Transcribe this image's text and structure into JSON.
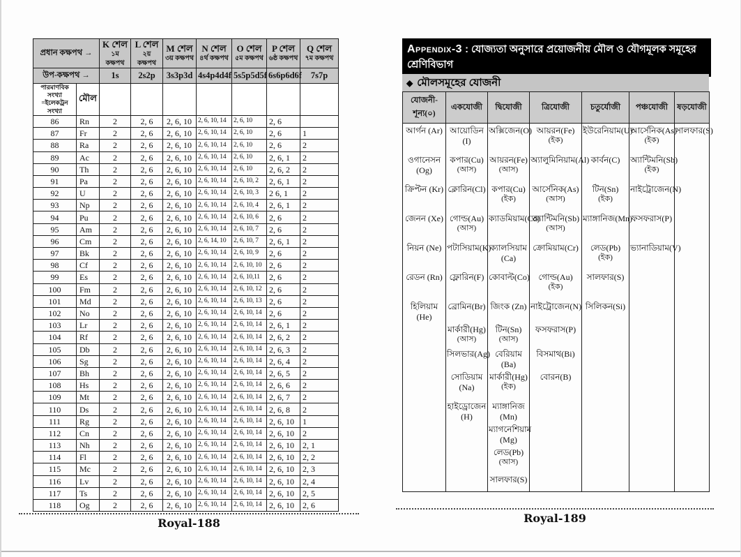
{
  "left_page": {
    "electron_table": {
      "corner_main_label": "প্রধান কক্ষপথ →",
      "corner_sub_label": "উপ-কক্ষপথ →",
      "atomic_number_label_line1": "পারমাণবিক সংখ্যা",
      "atomic_number_label_line2": "=ইলেকট্রন সংখ্যা",
      "element_label": "মৌল",
      "shells": [
        {
          "name": "K শেল",
          "orbit": "১ম কক্ষপথ"
        },
        {
          "name": "L শেল",
          "orbit": "২য় কক্ষপথ"
        },
        {
          "name": "M শেল",
          "orbit": "৩য় কক্ষপথ"
        },
        {
          "name": "N শেল",
          "orbit": "৪র্থ কক্ষপথ"
        },
        {
          "name": "O শেল",
          "orbit": "৫ম কক্ষপথ"
        },
        {
          "name": "P শেল",
          "orbit": "৬ষ্ঠ কক্ষপথ"
        },
        {
          "name": "Q শেল",
          "orbit": "৭ম কক্ষপথ"
        }
      ],
      "subshells": [
        "1s",
        "2s2p",
        "3s3p3d",
        "4s4p4d4f",
        "5s5p5d5f",
        "6s6p6d6f",
        "7s7p"
      ],
      "rows": [
        [
          "86",
          "Rn",
          "2",
          "2, 6",
          "2, 6, 10",
          "2, 6, 10, 14",
          "2, 6, 10",
          "2, 6",
          ""
        ],
        [
          "87",
          "Fr",
          "2",
          "2, 6",
          "2, 6, 10",
          "2, 6, 10, 14",
          "2, 6, 10",
          "2, 6",
          "1"
        ],
        [
          "88",
          "Ra",
          "2",
          "2, 6",
          "2, 6, 10",
          "2, 6, 10, 14",
          "2, 6, 10",
          "2, 6",
          "2"
        ],
        [
          "89",
          "Ac",
          "2",
          "2, 6",
          "2, 6, 10",
          "2, 6, 10, 14",
          "2, 6, 10",
          "2, 6, 1",
          "2"
        ],
        [
          "90",
          "Th",
          "2",
          "2, 6",
          "2, 6, 10",
          "2, 6, 10, 14",
          "2, 6, 10",
          "2, 6, 2",
          "2"
        ],
        [
          "91",
          "Pa",
          "2",
          "2, 6",
          "2, 6, 10",
          "2, 6, 10, 14",
          "2, 6, 10, 2",
          "2, 6, 1",
          "2"
        ],
        [
          "92",
          "U",
          "2",
          "2, 6",
          "2, 6, 10",
          "2, 6, 10, 14",
          "2, 6, 10, 3",
          "2 6, 1",
          "2"
        ],
        [
          "93",
          "Np",
          "2",
          "2, 6",
          "2, 6, 10",
          "2, 6, 10, 14",
          "2, 6, 10, 4",
          "2, 6, 1",
          "2"
        ],
        [
          "94",
          "Pu",
          "2",
          "2, 6",
          "2, 6, 10",
          "2, 6, 10, 14",
          "2, 6, 10, 6",
          "2, 6",
          "2"
        ],
        [
          "95",
          "Am",
          "2",
          "2, 6",
          "2, 6, 10",
          "2, 6, 10, 14",
          "2, 6, 10, 7",
          "2, 6",
          "2"
        ],
        [
          "96",
          "Cm",
          "2",
          "2, 6",
          "2, 6, 10",
          "2, 6, 14, 10",
          "2, 6, 10, 7",
          "2, 6, 1",
          "2"
        ],
        [
          "97",
          "Bk",
          "2",
          "2, 6",
          "2, 6, 10",
          "2, 6, 10, 14",
          "2, 6, 10, 9",
          "2, 6",
          "2"
        ],
        [
          "98",
          "Cf",
          "2",
          "2, 6",
          "2, 6, 10",
          "2, 6, 10, 14",
          "2, 6, 10, 10",
          "2, 6",
          "2"
        ],
        [
          "99",
          "Es",
          "2",
          "2, 6",
          "2, 6, 10",
          "2, 6, 10, 14",
          "2, 6, 10,11",
          "2, 6",
          "2"
        ],
        [
          "100",
          "Fm",
          "2",
          "2, 6",
          "2, 6, 10",
          "2, 6, 10, 14",
          "2, 6, 10, 12",
          "2, 6",
          "2"
        ],
        [
          "101",
          "Md",
          "2",
          "2, 6",
          "2, 6, 10",
          "2, 6, 10, 14",
          "2, 6, 10, 13",
          "2, 6",
          "2"
        ],
        [
          "102",
          "No",
          "2",
          "2, 6",
          "2, 6, 10",
          "2, 6, 10, 14",
          "2, 6, 10, 14",
          "2, 6",
          "2"
        ],
        [
          "103",
          "Lr",
          "2",
          "2, 6",
          "2, 6, 10",
          "2, 6, 10, 14",
          "2, 6, 10, 14",
          "2, 6, 1",
          "2"
        ],
        [
          "104",
          "Rf",
          "2",
          "2, 6",
          "2, 6, 10",
          "2, 6, 10, 14",
          "2, 6, 10, 14",
          "2, 6, 2",
          "2"
        ],
        [
          "105",
          "Db",
          "2",
          "2, 6",
          "2, 6, 10",
          "2, 6, 10, 14",
          "2, 6, 10, 14",
          "2, 6, 3",
          "2"
        ],
        [
          "106",
          "Sg",
          "2",
          "2, 6",
          "2, 6, 10",
          "2, 6, 10, 14",
          "2, 6, 10, 14",
          "2, 6, 4",
          "2"
        ],
        [
          "107",
          "Bh",
          "2",
          "2, 6",
          "2, 6, 10",
          "2, 6, 10, 14",
          "2, 6, 10, 14",
          "2, 6, 5",
          "2"
        ],
        [
          "108",
          "Hs",
          "2",
          "2, 6",
          "2, 6, 10",
          "2, 6, 10, 14",
          "2, 6, 10, 14",
          "2, 6, 6",
          "2"
        ],
        [
          "109",
          "Mt",
          "2",
          "2, 6",
          "2, 6, 10",
          "2, 6, 10, 14",
          "2, 6, 10, 14",
          "2, 6, 7",
          "2"
        ],
        [
          "110",
          "Ds",
          "2",
          "2, 6",
          "2, 6, 10",
          "2, 6, 10, 14",
          "2, 6, 10, 14",
          "2, 6, 8",
          "2"
        ],
        [
          "111",
          "Rg",
          "2",
          "2, 6",
          "2, 6, 10",
          "2, 6, 10, 14",
          "2, 6, 10, 14",
          "2, 6, 10",
          "1"
        ],
        [
          "112",
          "Cn",
          "2",
          "2, 6",
          "2, 6, 10",
          "2, 6, 10, 14",
          "2, 6, 10, 14",
          "2, 6, 10",
          "2"
        ],
        [
          "113",
          "Nh",
          "2",
          "2, 6",
          "2, 6, 10",
          "2, 6, 10, 14",
          "2, 6, 10, 14",
          "2, 6, 10",
          "2, 1"
        ],
        [
          "114",
          "Fl",
          "2",
          "2, 6",
          "2, 6, 10",
          "2, 6, 10, 14",
          "2, 6, 10, 14",
          "2, 6, 10",
          "2, 2"
        ],
        [
          "115",
          "Mc",
          "2",
          "2, 6",
          "2, 6, 10",
          "2, 6, 10, 14",
          "2, 6, 10, 14",
          "2, 6, 10",
          "2, 3"
        ],
        [
          "116",
          "Lv",
          "2",
          "2, 6",
          "2, 6, 10",
          "2, 6, 10, 14",
          "2, 6, 10, 14",
          "2, 6, 10",
          "2, 4"
        ],
        [
          "117",
          "Ts",
          "2",
          "2, 6",
          "2, 6, 10",
          "2, 6, 10, 14",
          "2, 6, 10, 14",
          "2, 6, 10",
          "2, 5"
        ],
        [
          "118",
          "Og",
          "2",
          "2, 6",
          "2, 6, 10",
          "2, 6, 10, 14",
          "2, 6, 10, 14",
          "2, 6, 10",
          "2, 6"
        ]
      ]
    },
    "footer": "Royal-188"
  },
  "right_page": {
    "appendix_bar": {
      "label": "Appendix-3",
      "separator": " : ",
      "title": "যোজ্যতা অনুসারে প্রয়োজনীয় মৌল ও যৌগমূলক সমূহের শ্রেণিবিভাগ"
    },
    "section": {
      "icon": "◆",
      "title": "মৌলসমূহের যোজনী"
    },
    "valency_table": {
      "headers": [
        "যোজনী-শূন্য(০)",
        "একযোজী",
        "দ্বিযোজী",
        "ত্রিযোজী",
        "চতুর্যোজী",
        "পঞ্চযোজী",
        "ষড়যোজী"
      ],
      "rows": [
        [
          {
            "n": "আর্গন (Ar)"
          },
          {
            "n": "আয়োডিন (I)"
          },
          {
            "n": "অক্সিজেন(O)"
          },
          {
            "n": "আয়রন(Fe)",
            "s": "(ইক)"
          },
          {
            "n": "ইউরেনিয়াম(U)"
          },
          {
            "n": "আর্সেনিক(As)",
            "s": "(ইক)"
          },
          {
            "n": "সালফার(S)"
          }
        ],
        [
          {
            "n": "ওগানেসন (Og)"
          },
          {
            "n": "কপার(Cu)",
            "s": "(আস)"
          },
          {
            "n": "আয়রন(Fe)",
            "s": "(আস)"
          },
          {
            "n": "অ্যালুমিনিয়াম(Al)"
          },
          {
            "n": "কার্বন(C)"
          },
          {
            "n": "অ্যান্টিমনি(Sb)",
            "s": "(ইক)"
          },
          null
        ],
        [
          {
            "n": "ক্রিপ্টন (Kr)"
          },
          {
            "n": "ক্লোরিন(Cl)"
          },
          {
            "n": "কপার(Cu)",
            "s": "(ইক)"
          },
          {
            "n": "আর্সেনিক(As)",
            "s": "(আস)"
          },
          {
            "n": "টিন(Sn)",
            "s": "(ইক)"
          },
          {
            "n": "নাইট্রোজেন(N)"
          },
          null
        ],
        [
          {
            "n": "জেনন (Xe)"
          },
          {
            "n": "গোল্ড(Au)",
            "s": "(আস)"
          },
          {
            "n": "ক্যাডমিয়াম(Cd)"
          },
          {
            "n": "অ্যান্টিমনি(Sb)",
            "s": "(আস)"
          },
          {
            "n": "ম্যাঙ্গানিজ(Mn)"
          },
          {
            "n": "ফসফরাস(P)"
          },
          null
        ],
        [
          {
            "n": "নিয়ন (Ne)"
          },
          {
            "n": "পটাসিয়াম(K)"
          },
          {
            "n": "ক্যালসিয়াম (Ca)"
          },
          {
            "n": "ক্রোমিয়াম(Cr)"
          },
          {
            "n": "লেড(Pb)",
            "s": "(ইক)"
          },
          {
            "n": "ভ্যানাডিয়াম(V)"
          },
          null
        ],
        [
          {
            "n": "রেডন (Rn)"
          },
          {
            "n": "ফ্লোরিন(F)"
          },
          {
            "n": "কোবাল্ট(Co)"
          },
          {
            "n": "গোল্ড(Au)",
            "s": "(ইক)"
          },
          {
            "n": "সালফার(S)"
          },
          null,
          null
        ],
        [
          {
            "n": "হিলিয়াম (He)"
          },
          {
            "n": "ব্রোমিন(Br)"
          },
          {
            "n": "জিংক (Zn)"
          },
          {
            "n": "নাইট্রোজেন(N)"
          },
          {
            "n": "সিলিকন(Si)"
          },
          null,
          null
        ],
        [
          null,
          {
            "n": "মার্কারী(Hg)",
            "s": "(আস)"
          },
          {
            "n": "টিন(Sn)",
            "s": "(আস)"
          },
          {
            "n": "ফসফরাস(P)"
          },
          null,
          null,
          null
        ],
        [
          null,
          {
            "n": "সিলভার(Ag)"
          },
          {
            "n": "বেরিয়াম (Ba)"
          },
          {
            "n": "বিসমাথ(Bi)"
          },
          null,
          null,
          null
        ],
        [
          null,
          {
            "n": "সোডিয়াম (Na)"
          },
          {
            "n": "মার্কারী(Hg)",
            "s": "(ইক)"
          },
          {
            "n": "বোরন(B)"
          },
          null,
          null,
          null
        ],
        [
          null,
          {
            "n": "হাইড্রোজেন (H)"
          },
          {
            "n": "ম্যাঙ্গানিজ (Mn)"
          },
          null,
          null,
          null,
          null
        ],
        [
          null,
          null,
          {
            "n": "ম্যাগনেশিয়াম (Mg)"
          },
          null,
          null,
          null,
          null
        ],
        [
          null,
          null,
          {
            "n": "লেড(Pb)",
            "s": "(আস)"
          },
          null,
          null,
          null,
          null
        ],
        [
          null,
          null,
          {
            "n": "সালফার(S)"
          },
          null,
          null,
          null,
          null
        ]
      ]
    },
    "footer": "Royal-189"
  }
}
